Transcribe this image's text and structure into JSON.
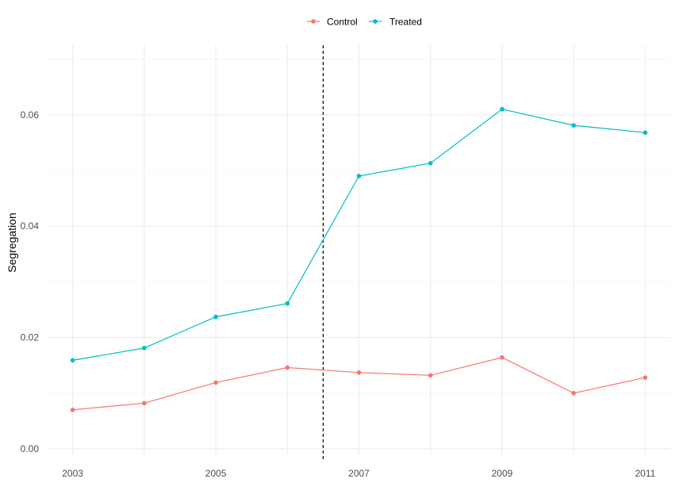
{
  "chart_data": {
    "type": "line",
    "title": "",
    "xlabel": "",
    "ylabel": "Segregation",
    "x": [
      2003,
      2004,
      2005,
      2006,
      2007,
      2008,
      2009,
      2010,
      2011
    ],
    "x_ticks": [
      "2003",
      "2005",
      "2007",
      "2009",
      "2011"
    ],
    "y_ticks": [
      "0.00",
      "0.02",
      "0.04",
      "0.06"
    ],
    "xlim": [
      2002.65,
      2011.35
    ],
    "ylim": [
      -0.001,
      0.0725
    ],
    "grid": true,
    "legend_position": "top",
    "reference_line": {
      "x": 2006.5,
      "style": "dashed",
      "color": "#000000"
    },
    "series": [
      {
        "name": "Control",
        "color": "#F8766D",
        "values": [
          0.007,
          0.0082,
          0.0119,
          0.0146,
          0.0137,
          0.0132,
          0.0164,
          0.01,
          0.0128
        ]
      },
      {
        "name": "Treated",
        "color": "#00BFC4",
        "values": [
          0.0159,
          0.0181,
          0.0237,
          0.0261,
          0.049,
          0.0513,
          0.061,
          0.0581,
          0.0568
        ]
      }
    ]
  }
}
